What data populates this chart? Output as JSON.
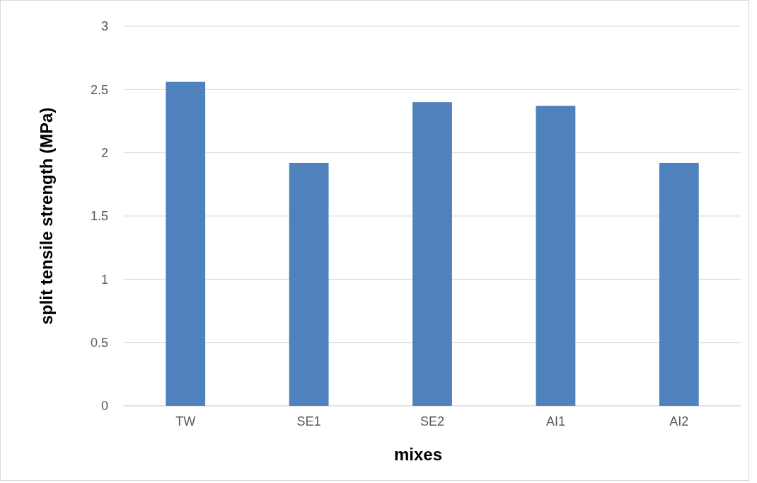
{
  "chart_data": {
    "type": "bar",
    "xlabel": "mixes",
    "ylabel": "split tensile strength (MPa)",
    "categories": [
      "TW",
      "SE1",
      "SE2",
      "AI1",
      "AI2"
    ],
    "values": [
      2.56,
      1.92,
      2.4,
      2.37,
      1.92
    ],
    "color": "#4f81bd",
    "ylim": [
      0,
      3
    ],
    "yticks": [
      0,
      0.5,
      1,
      1.5,
      2,
      2.5,
      3
    ],
    "grid": "y"
  }
}
